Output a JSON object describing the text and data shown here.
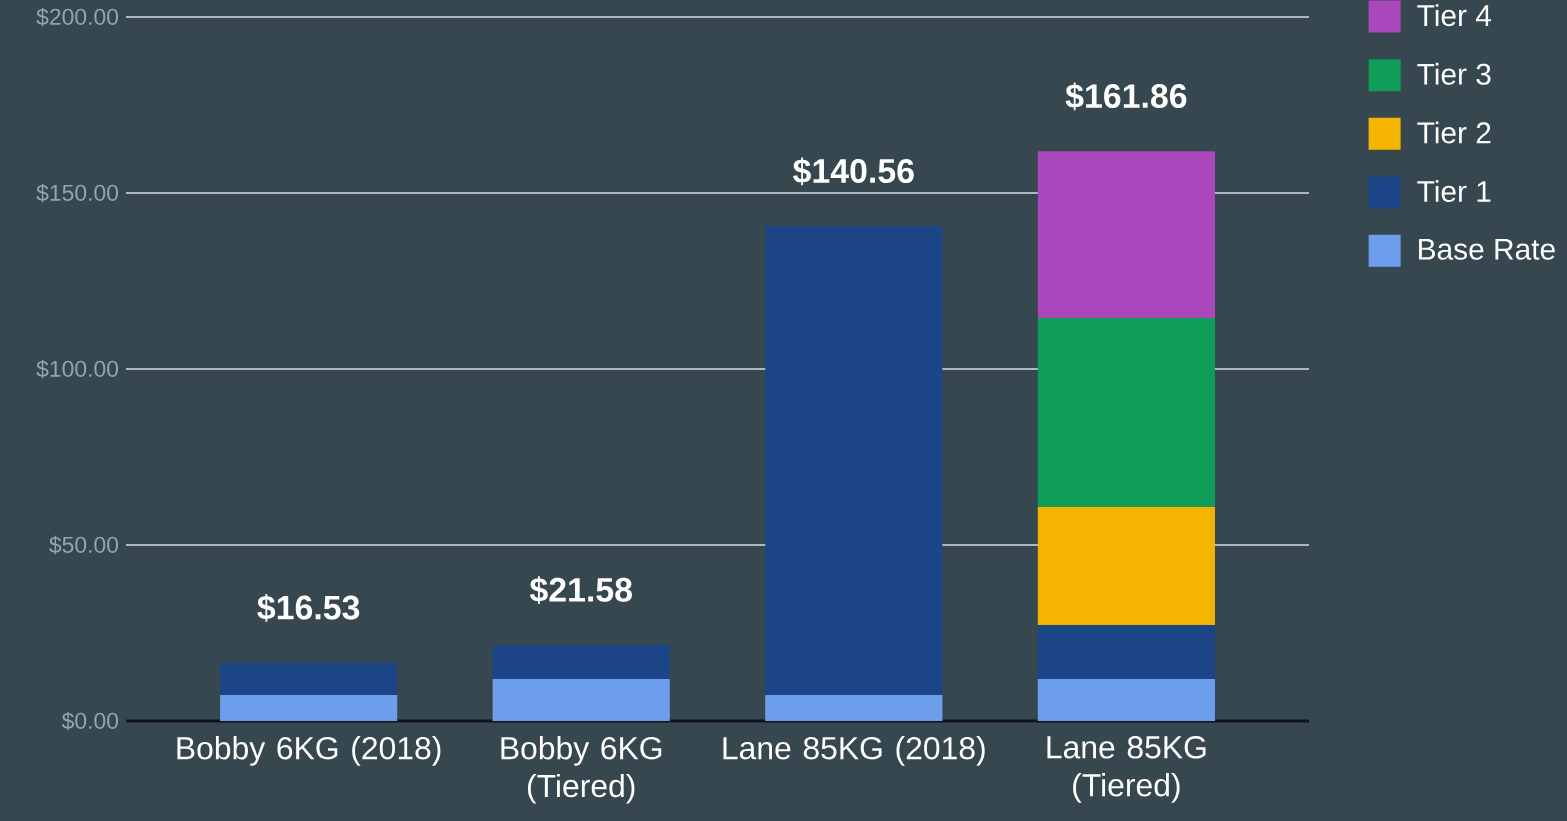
{
  "chart_data": {
    "type": "bar",
    "stacked": true,
    "categories": [
      "Bobby 6KG (2018)",
      "Bobby 6KG (Tiered)",
      "Lane 85KG (2018)",
      "Lane 85KG (Tiered)"
    ],
    "series": [
      {
        "name": "Base Rate",
        "color": "#6d9eeb",
        "values": [
          7.4,
          11.9,
          7.4,
          11.9
        ]
      },
      {
        "name": "Tier 1",
        "color": "#1c4587",
        "values": [
          9.13,
          9.68,
          133.16,
          15.4
        ]
      },
      {
        "name": "Tier 2",
        "color": "#f4b400",
        "values": [
          null,
          null,
          null,
          33.5
        ]
      },
      {
        "name": "Tier 3",
        "color": "#0f9d58",
        "values": [
          null,
          null,
          null,
          53.7
        ]
      },
      {
        "name": "Tier 4",
        "color": "#ab47bc",
        "values": [
          null,
          null,
          null,
          47.36
        ]
      }
    ],
    "totals": [
      "$16.53",
      "$21.58",
      "$140.56",
      "$161.86"
    ],
    "ylim": [
      0,
      200
    ],
    "yticks": [
      {
        "value": 0,
        "label": "$0.00"
      },
      {
        "value": 50,
        "label": "$50.00"
      },
      {
        "value": 100,
        "label": "$100.00"
      },
      {
        "value": 150,
        "label": "$150.00"
      },
      {
        "value": 200,
        "label": "$200.00"
      }
    ],
    "grid": "y",
    "legend": "top right"
  }
}
